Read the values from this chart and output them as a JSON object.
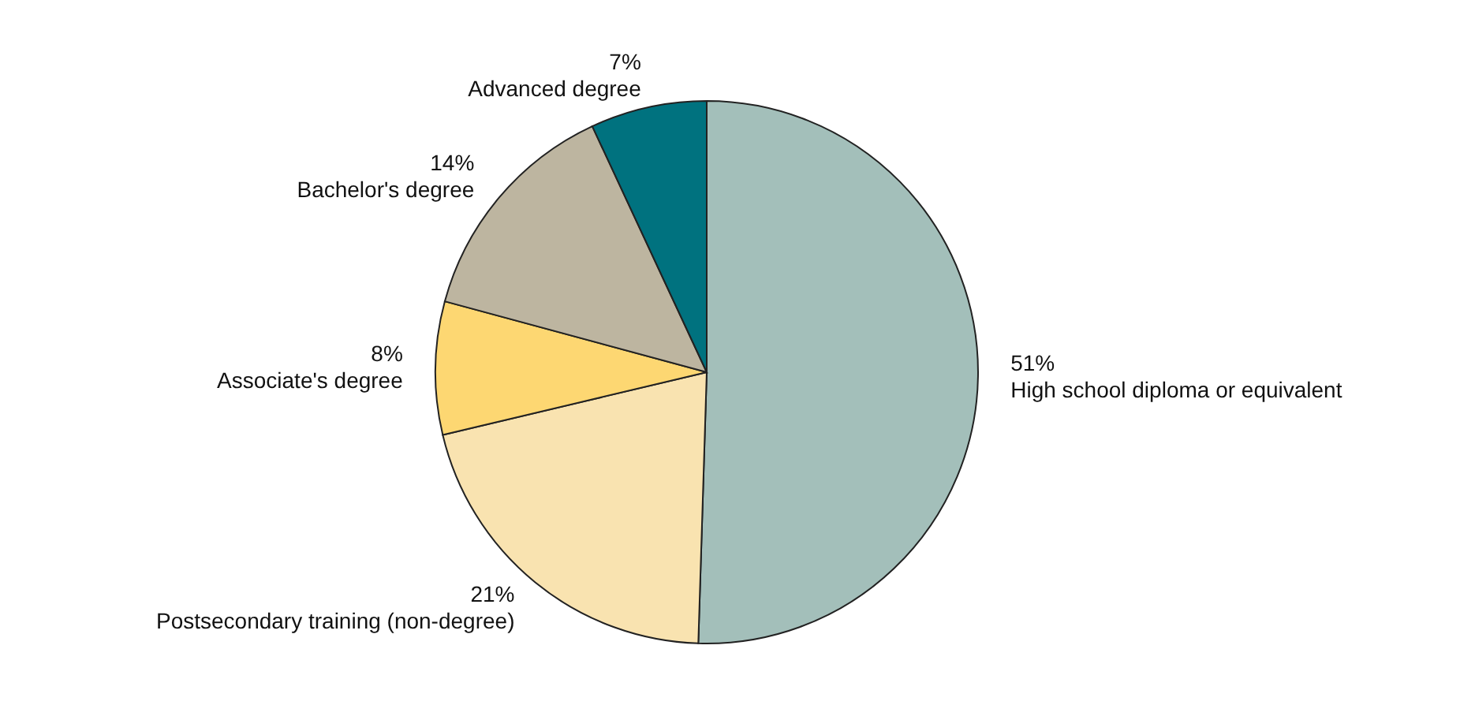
{
  "chart_data": {
    "type": "pie",
    "categories": [
      "High school diploma or equivalent",
      "Postsecondary training (non-degree)",
      "Associate's degree",
      "Bachelor's degree",
      "Advanced degree"
    ],
    "values": [
      51,
      21,
      8,
      14,
      7
    ],
    "colors": [
      "#a3bfba",
      "#f9e3b0",
      "#fdd772",
      "#bdb5a0",
      "#00727f"
    ],
    "value_labels": [
      "51%",
      "21%",
      "8%",
      "14%",
      "7%"
    ]
  }
}
